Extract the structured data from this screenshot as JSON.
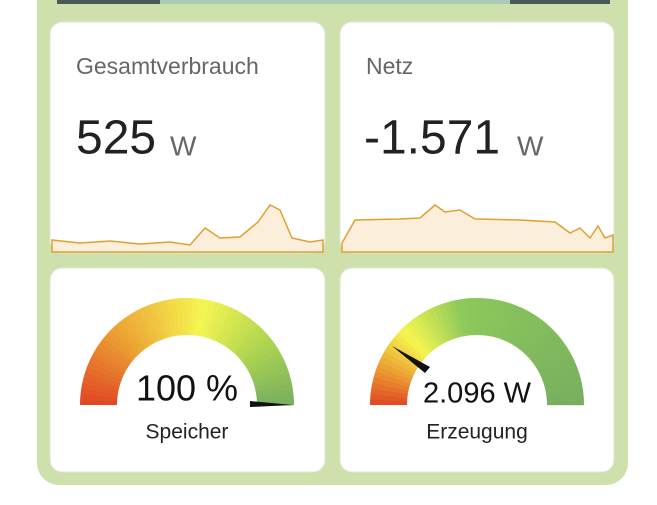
{
  "cards": [
    {
      "title": "Gesamtverbrauch",
      "value": "525",
      "unit": "W"
    },
    {
      "title": "Netz",
      "value": "-1.571",
      "unit": "W"
    }
  ],
  "gauges": [
    {
      "value": "100 %",
      "name": "Speicher"
    },
    {
      "value": "2.096 W",
      "name": "Erzeugung"
    }
  ]
}
